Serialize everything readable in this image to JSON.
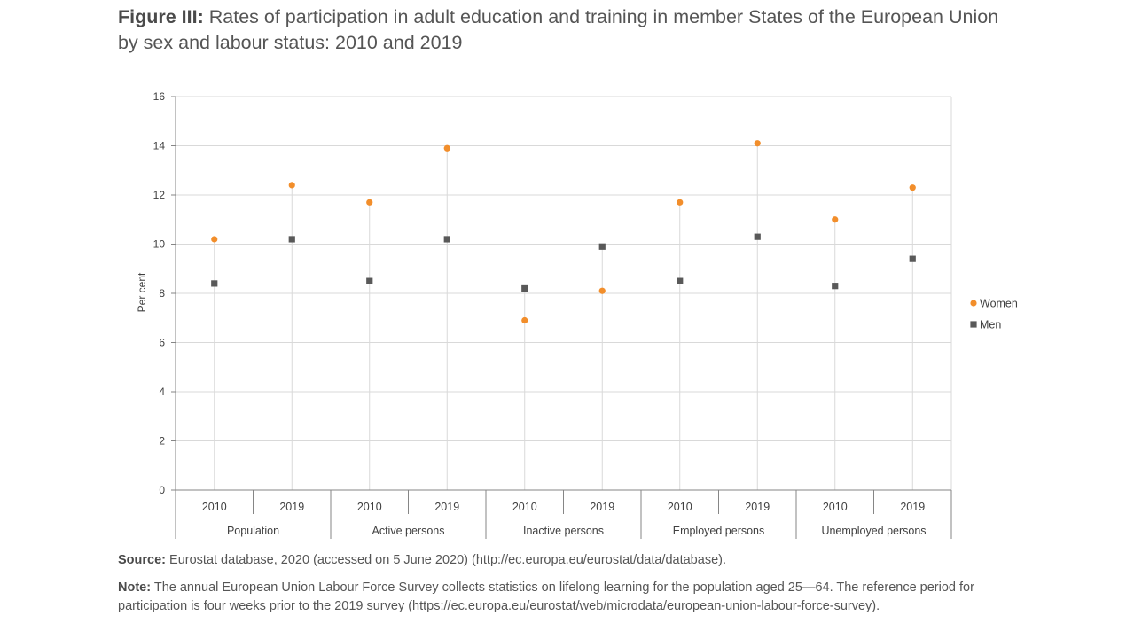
{
  "figure": {
    "label": "Figure III:",
    "title": "Rates of participation in adult education and training in member States of the European Union by sex and labour status: 2010 and 2019"
  },
  "source": {
    "label": "Source:",
    "text": "Eurostat database, 2020 (accessed on 5 June 2020) (http://ec.europa.eu/eurostat/data/database)."
  },
  "note": {
    "label": "Note:",
    "text": "The annual European Union Labour Force Survey collects statistics on lifelong learning for the population aged 25—64. The reference period for participation is four weeks prior to the 2019 survey (https://ec.europa.eu/eurostat/web/microdata/european-union-labour-force-survey)."
  },
  "chart_data": {
    "type": "scatter",
    "ylabel": "Per cent",
    "ylim": [
      0,
      16
    ],
    "yticks": [
      0,
      2,
      4,
      6,
      8,
      10,
      12,
      14,
      16
    ],
    "grid": true,
    "legend_position": "right",
    "groups": [
      "Population",
      "Active persons",
      "Inactive persons",
      "Employed persons",
      "Unemployed persons"
    ],
    "years": [
      "2010",
      "2019"
    ],
    "series": [
      {
        "name": "Women",
        "marker": "circle",
        "color": "#f28e2b",
        "values": [
          10.2,
          12.4,
          11.7,
          13.9,
          6.9,
          8.1,
          11.7,
          14.1,
          11.0,
          12.3
        ]
      },
      {
        "name": "Men",
        "marker": "square",
        "color": "#595959",
        "values": [
          8.4,
          10.2,
          8.5,
          10.2,
          8.2,
          9.9,
          8.5,
          10.3,
          8.3,
          9.4
        ]
      }
    ]
  }
}
